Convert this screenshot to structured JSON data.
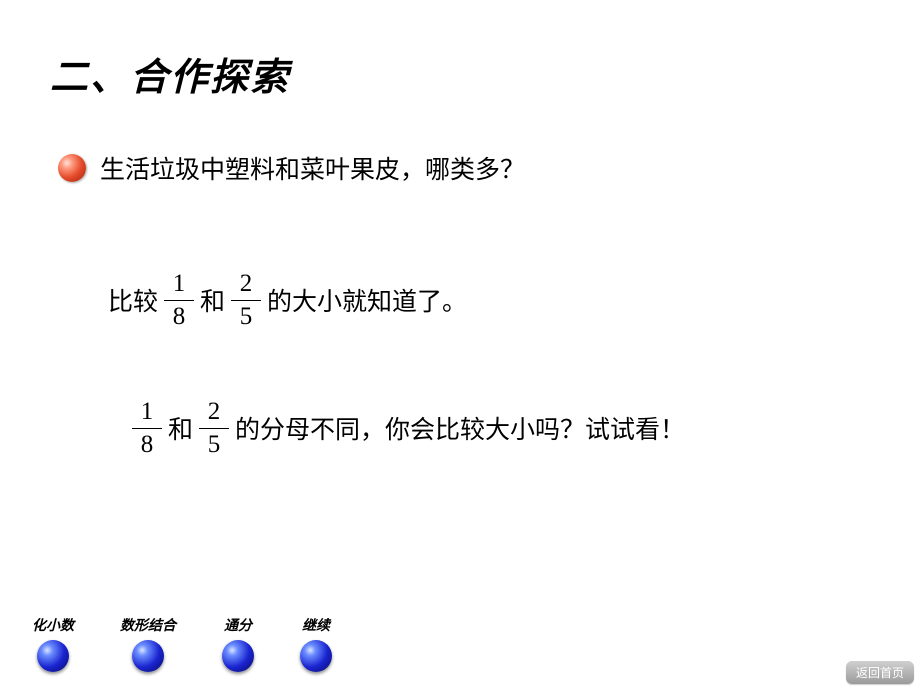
{
  "title": "二、合作探索",
  "bullet": {
    "text": "生活垃圾中塑料和菜叶果皮，哪类多？",
    "color": "#e44a2a"
  },
  "line1": {
    "pre": "比较",
    "frac1": {
      "num": "1",
      "den": "8"
    },
    "mid": "和",
    "frac2": {
      "num": "2",
      "den": "5"
    },
    "post": "的大小就知道了。"
  },
  "line2": {
    "frac1": {
      "num": "1",
      "den": "8"
    },
    "mid": "和",
    "frac2": {
      "num": "2",
      "den": "5"
    },
    "post": "的分母不同，你会比较大小吗？试试看！"
  },
  "nav": {
    "items": [
      {
        "label": "化小数"
      },
      {
        "label": "数形结合"
      },
      {
        "label": "通分"
      },
      {
        "label": "继续"
      }
    ],
    "button_color": "#1a24d0"
  },
  "return_label": "返回首页",
  "style": {
    "background": "#ffffff",
    "text_color": "#000000",
    "title_fontsize": 38,
    "body_fontsize": 25,
    "nav_fontsize": 14
  }
}
